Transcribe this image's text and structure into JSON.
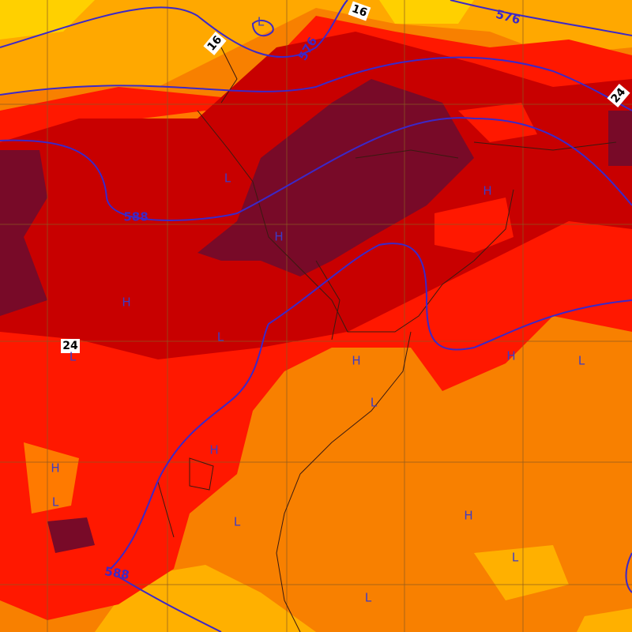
{
  "height_labels": [
    "576",
    "576",
    "588",
    "588"
  ],
  "thickness_labels": [
    "16",
    "16",
    "24",
    "24"
  ],
  "pressure_marks": [
    "L",
    "L",
    "H",
    "H",
    "H",
    "L",
    "L",
    "H",
    "H",
    "L",
    "L",
    "H",
    "H",
    "L",
    "L",
    "H",
    "L",
    "L"
  ]
}
